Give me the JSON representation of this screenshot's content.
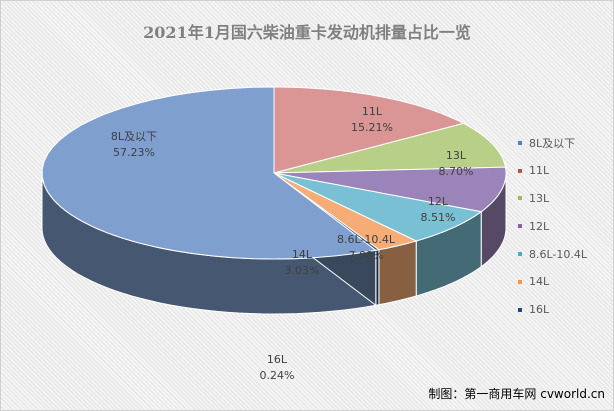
{
  "chart_data": {
    "type": "pie",
    "title": "2021年1月国六柴油重卡发动机排量占比一览",
    "categories": [
      "8L及以下",
      "11L",
      "13L",
      "12L",
      "8.6L-10.4L",
      "14L",
      "16L"
    ],
    "values": [
      57.23,
      15.21,
      8.7,
      8.51,
      7.08,
      3.03,
      0.24
    ],
    "value_labels": [
      "57.23%",
      "15.21%",
      "8.70%",
      "8.51%",
      "7.08%",
      "3.03%",
      "0.24%"
    ],
    "colors": [
      "#7f9fcf",
      "#d99694",
      "#b7cf86",
      "#9a84ba",
      "#79c0d4",
      "#f5ac76",
      "#1f497d"
    ],
    "legend_position": "right"
  },
  "credit": "制图：第一商用车网 cvworld.cn"
}
